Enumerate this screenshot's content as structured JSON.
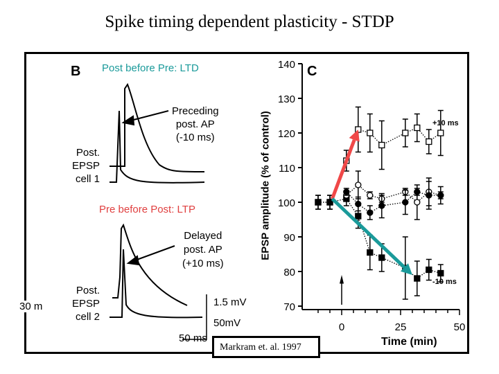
{
  "title": "Spike timing dependent plasticity - STDP",
  "panel_b": {
    "label": "B",
    "ltd_heading": "Post before Pre: LTD",
    "ltp_heading": "Pre before Post: LTP",
    "ltd_annotation": [
      "Preceding",
      "post. AP",
      "(-10 ms)"
    ],
    "ltp_annotation": [
      "Delayed",
      "post. AP",
      "(+10 ms)"
    ],
    "cell1_label": [
      "Post.",
      "EPSP",
      "cell 1"
    ],
    "cell2_label": [
      "Post.",
      "EPSP",
      "cell 2"
    ],
    "scale_mv1": "1.5 mV",
    "scale_mv2": "50mV",
    "scale_ms": "50 ms",
    "cut_text": "30 m",
    "heading_colors": {
      "ltd": "#1a9a9a",
      "ltp": "#e04040"
    }
  },
  "citation": "Markram et. al. 1997",
  "chart_data": {
    "type": "scatter",
    "panel_label": "C",
    "xlabel": "Time (min)",
    "ylabel": "EPSP amplitude (% of control)",
    "xlim": [
      -13,
      50
    ],
    "ylim": [
      70,
      140
    ],
    "xticks": [
      0,
      25,
      50
    ],
    "yticks": [
      70,
      80,
      90,
      100,
      110,
      120,
      130,
      140
    ],
    "grid": false,
    "series": [
      {
        "name": "+10 ms",
        "marker": "open-square",
        "x": [
          -10,
          -5,
          2,
          7,
          12,
          17,
          27,
          32,
          37,
          42
        ],
        "y": [
          100,
          100,
          112,
          121,
          120,
          116.5,
          120,
          121.5,
          117.5,
          120
        ],
        "err": [
          2,
          2,
          3,
          6.5,
          5.5,
          7,
          4,
          4,
          3.5,
          6.5
        ]
      },
      {
        "name": "-10 ms",
        "marker": "filled-square",
        "x": [
          -10,
          -5,
          2,
          7,
          12,
          17,
          27,
          32,
          37,
          42
        ],
        "y": [
          100,
          100,
          101,
          96,
          85.5,
          84,
          81,
          78,
          80.5,
          79.5
        ],
        "err": [
          2,
          2,
          2,
          3.5,
          5,
          4,
          9,
          5,
          3,
          2.5
        ]
      },
      {
        "marker": "open-circle",
        "x": [
          2,
          7,
          12,
          17,
          27,
          32,
          37,
          42
        ],
        "y": [
          102,
          105,
          102,
          101,
          103,
          100,
          103,
          102
        ],
        "err": [
          1,
          4,
          1,
          1,
          1,
          5,
          4,
          1
        ]
      },
      {
        "marker": "filled-circle",
        "x": [
          2,
          7,
          12,
          17,
          27,
          32,
          37,
          42
        ],
        "y": [
          103,
          99.5,
          97,
          99,
          100,
          103,
          102,
          102
        ],
        "err": [
          1,
          2,
          2,
          3.5,
          3.5,
          1,
          4,
          2.5
        ]
      }
    ],
    "stimulus_arrow_x": 0,
    "trend_arrows": [
      {
        "from": [
          -4,
          101
        ],
        "to": [
          7,
          121
        ],
        "color": "#f04848"
      },
      {
        "from": [
          -4,
          101
        ],
        "to": [
          30,
          79
        ],
        "color": "#1a9a9a"
      }
    ]
  }
}
